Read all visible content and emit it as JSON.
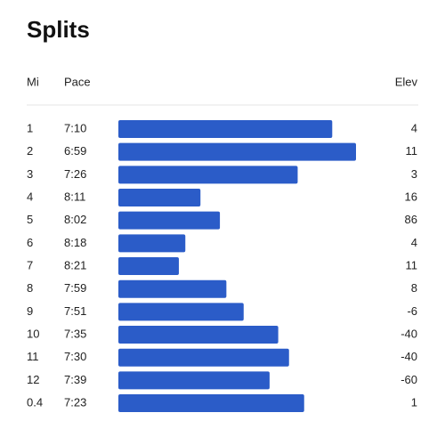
{
  "chart_data": {
    "type": "bar",
    "title": "Splits",
    "headers": [
      "Mi",
      "Pace",
      "Elev"
    ],
    "categories": [
      "1",
      "2",
      "3",
      "4",
      "5",
      "6",
      "7",
      "8",
      "9",
      "10",
      "11",
      "12",
      "0.4"
    ],
    "values": [
      430,
      419,
      446,
      491,
      482,
      498,
      501,
      479,
      471,
      455,
      450,
      459,
      443
    ],
    "value_labels": [
      "7:10",
      "6:59",
      "7:26",
      "8:11",
      "8:02",
      "8:18",
      "8:21",
      "7:59",
      "7:51",
      "7:35",
      "7:30",
      "7:39",
      "7:23"
    ],
    "elev": [
      4,
      11,
      3,
      16,
      86,
      4,
      11,
      8,
      -6,
      -40,
      -40,
      -60,
      1
    ],
    "color": "#2b5cc8",
    "xlim": [
      529,
      419
    ]
  }
}
